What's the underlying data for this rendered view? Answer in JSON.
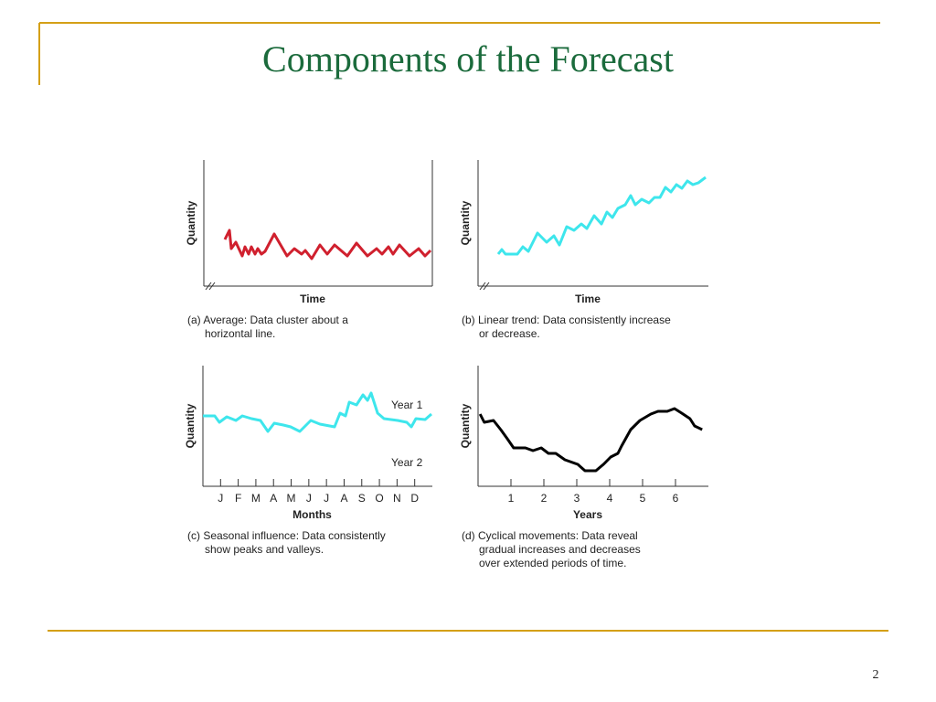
{
  "title": "Components of the Forecast",
  "page_number": "2",
  "chart_data": [
    {
      "type": "line",
      "color": "#d0202e",
      "xlabel": "Time",
      "ylabel": "Quantity",
      "xlim": [
        0,
        250
      ],
      "ylim": [
        0,
        138
      ],
      "caption": [
        "(a) Average: Data cluster about a",
        "horizontal line."
      ],
      "x": [
        23,
        28,
        30,
        35,
        42,
        45,
        49,
        52,
        56,
        59,
        63,
        67,
        77,
        91,
        99,
        107,
        111,
        118,
        127,
        135,
        143,
        157,
        167,
        179,
        189,
        195,
        202,
        207,
        214,
        225,
        235,
        242,
        248
      ],
      "values": [
        51,
        61,
        41,
        48,
        33,
        43,
        35,
        43,
        35,
        41,
        35,
        38,
        57,
        33,
        41,
        35,
        39,
        30,
        45,
        35,
        45,
        33,
        47,
        33,
        41,
        35,
        43,
        35,
        45,
        33,
        41,
        33,
        39
      ]
    },
    {
      "type": "line",
      "color": "#3ee6ec",
      "xlabel": "Time",
      "ylabel": "Quantity",
      "xlim": [
        0,
        252
      ],
      "ylim": [
        0,
        138
      ],
      "caption": [
        "(b) Linear trend: Data consistently increase",
        "or decrease."
      ],
      "x": [
        22,
        26,
        30,
        43,
        49,
        55,
        65,
        75,
        83,
        89,
        97,
        105,
        113,
        119,
        127,
        135,
        141,
        147,
        153,
        161,
        167,
        172,
        179,
        187,
        193,
        199,
        205,
        211,
        217,
        223,
        229,
        235,
        241,
        249
      ],
      "values": [
        35,
        40,
        35,
        35,
        43,
        38,
        58,
        48,
        55,
        45,
        65,
        61,
        68,
        63,
        77,
        68,
        81,
        75,
        85,
        89,
        99,
        89,
        95,
        91,
        97,
        97,
        108,
        103,
        111,
        107,
        115,
        111,
        113,
        119
      ]
    },
    {
      "type": "line",
      "color": "#3ee6ec",
      "xlabel": "Months",
      "ylabel": "Quantity",
      "xlim": [
        0,
        13
      ],
      "ylim": [
        0,
        132
      ],
      "xticks": [
        {
          "value": 1,
          "label": "J"
        },
        {
          "value": 2,
          "label": "F"
        },
        {
          "value": 3,
          "label": "M"
        },
        {
          "value": 4,
          "label": "A"
        },
        {
          "value": 5,
          "label": "M"
        },
        {
          "value": 6,
          "label": "J"
        },
        {
          "value": 7,
          "label": "J"
        },
        {
          "value": 8,
          "label": "A"
        },
        {
          "value": 9,
          "label": "S"
        },
        {
          "value": 10,
          "label": "O"
        },
        {
          "value": 11,
          "label": "N"
        },
        {
          "value": 12,
          "label": "D"
        }
      ],
      "annotations": [
        "Year 1",
        "Year 2"
      ],
      "caption": [
        "(c) Seasonal influence: Data consistently",
        "show peaks and valleys."
      ],
      "x": [
        0,
        0.67,
        0.93,
        1.35,
        1.87,
        2.23,
        2.75,
        3.26,
        3.68,
        4.04,
        4.56,
        4.97,
        5.49,
        6.11,
        6.63,
        7.46,
        7.77,
        8.08,
        8.29,
        8.7,
        9.07,
        9.33,
        9.53,
        9.9,
        10.26,
        11.04,
        11.55,
        11.81,
        12.07,
        12.59,
        12.95
      ],
      "values": [
        77,
        77,
        70,
        76,
        72,
        77,
        74,
        72,
        60,
        69,
        67,
        65,
        60,
        72,
        68,
        65,
        80,
        77,
        92,
        89,
        100,
        94,
        102,
        80,
        74,
        72,
        70,
        65,
        74,
        73,
        79
      ]
    },
    {
      "type": "line",
      "color": "#000000",
      "xlabel": "Years",
      "ylabel": "Quantity",
      "xlim": [
        0,
        7
      ],
      "ylim": [
        0,
        132
      ],
      "xticks": [
        1,
        2,
        3,
        4,
        5,
        6
      ],
      "caption": [
        "(d) Cyclical movements: Data reveal",
        "gradual increases and decreases",
        "over extended periods of time."
      ],
      "x": [
        0.06,
        0.19,
        0.47,
        0.69,
        0.89,
        1.08,
        1.44,
        1.67,
        1.92,
        2.14,
        2.36,
        2.64,
        3.03,
        3.25,
        3.58,
        3.81,
        4.03,
        4.25,
        4.36,
        4.64,
        4.92,
        5.25,
        5.47,
        5.75,
        5.97,
        6.19,
        6.44,
        6.58,
        6.81
      ],
      "values": [
        79,
        70,
        72,
        62,
        52,
        42,
        42,
        39,
        42,
        36,
        36,
        29,
        24,
        17,
        17,
        24,
        32,
        36,
        44,
        62,
        72,
        79,
        82,
        82,
        85,
        80,
        74,
        66,
        62
      ]
    }
  ]
}
